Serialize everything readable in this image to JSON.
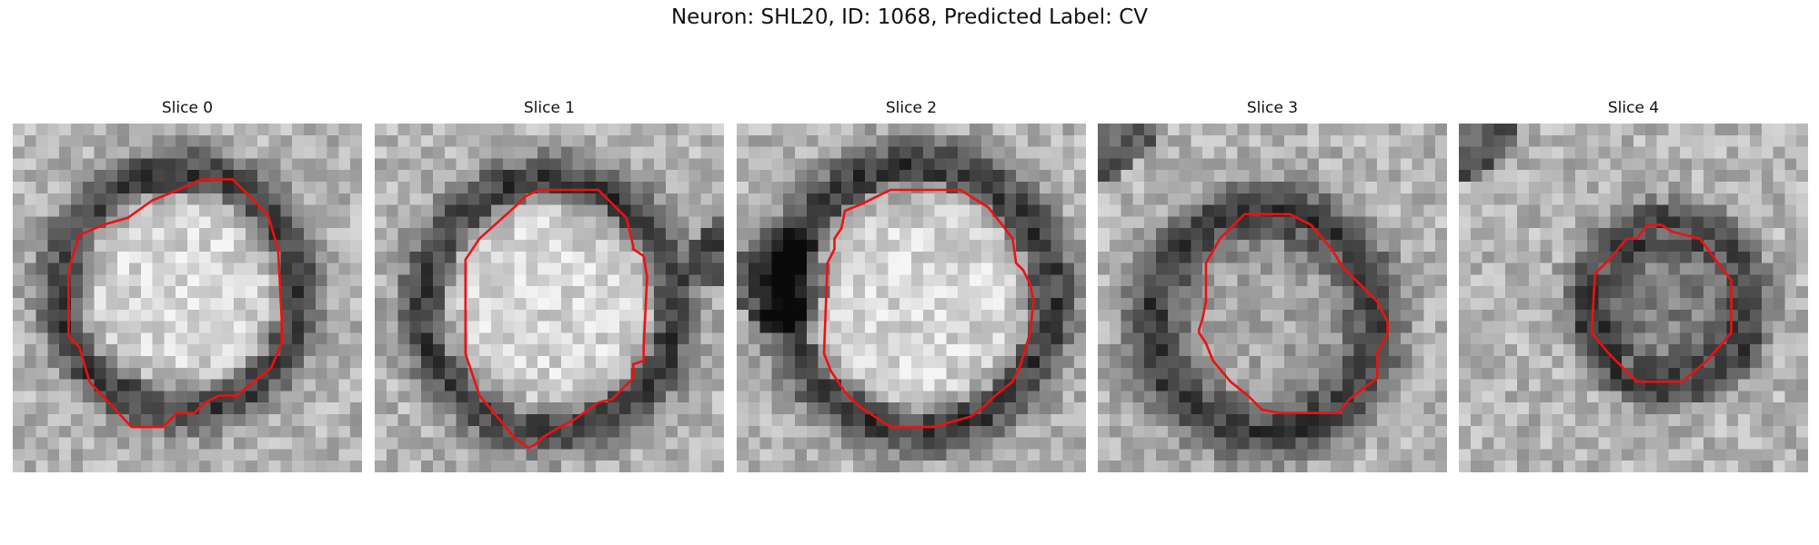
{
  "figure": {
    "title": "Neuron: SHL20, ID: 1068, Predicted Label: CV"
  },
  "slices": [
    {
      "title": "Slice 0",
      "contour_color": "#ee1111",
      "image": {
        "ring_center": [
          0.48,
          0.48
        ],
        "ring_radius": 0.34,
        "ring_width": 0.12,
        "inner": "bright",
        "corner_dark": "none"
      },
      "contour": [
        [
          0.54,
          0.16
        ],
        [
          0.63,
          0.16
        ],
        [
          0.73,
          0.26
        ],
        [
          0.76,
          0.36
        ],
        [
          0.77,
          0.56
        ],
        [
          0.77,
          0.63
        ],
        [
          0.74,
          0.7
        ],
        [
          0.64,
          0.78
        ],
        [
          0.59,
          0.78
        ],
        [
          0.55,
          0.8
        ],
        [
          0.52,
          0.83
        ],
        [
          0.47,
          0.83
        ],
        [
          0.43,
          0.87
        ],
        [
          0.34,
          0.87
        ],
        [
          0.22,
          0.74
        ],
        [
          0.19,
          0.64
        ],
        [
          0.16,
          0.61
        ],
        [
          0.16,
          0.42
        ],
        [
          0.19,
          0.32
        ],
        [
          0.26,
          0.29
        ],
        [
          0.33,
          0.27
        ],
        [
          0.4,
          0.22
        ],
        [
          0.45,
          0.2
        ]
      ]
    },
    {
      "title": "Slice 1",
      "contour_color": "#ee1111",
      "image": {
        "ring_center": [
          0.5,
          0.52
        ],
        "ring_radius": 0.36,
        "ring_width": 0.12,
        "inner": "bright",
        "corner_dark": "top-right"
      },
      "contour": [
        [
          0.47,
          0.19
        ],
        [
          0.64,
          0.19
        ],
        [
          0.72,
          0.27
        ],
        [
          0.74,
          0.35
        ],
        [
          0.74,
          0.36
        ],
        [
          0.77,
          0.38
        ],
        [
          0.78,
          0.44
        ],
        [
          0.77,
          0.64
        ],
        [
          0.77,
          0.68
        ],
        [
          0.74,
          0.69
        ],
        [
          0.74,
          0.73
        ],
        [
          0.68,
          0.79
        ],
        [
          0.64,
          0.8
        ],
        [
          0.57,
          0.85
        ],
        [
          0.53,
          0.87
        ],
        [
          0.48,
          0.9
        ],
        [
          0.46,
          0.92
        ],
        [
          0.44,
          0.93
        ],
        [
          0.4,
          0.9
        ],
        [
          0.3,
          0.78
        ],
        [
          0.28,
          0.72
        ],
        [
          0.26,
          0.66
        ],
        [
          0.26,
          0.39
        ],
        [
          0.3,
          0.33
        ],
        [
          0.4,
          0.24
        ],
        [
          0.43,
          0.21
        ]
      ]
    },
    {
      "title": "Slice 2",
      "contour_color": "#ee1111",
      "image": {
        "ring_center": [
          0.52,
          0.5
        ],
        "ring_radius": 0.38,
        "ring_width": 0.13,
        "inner": "bright",
        "corner_dark": "left"
      },
      "contour": [
        [
          0.44,
          0.19
        ],
        [
          0.64,
          0.19
        ],
        [
          0.72,
          0.24
        ],
        [
          0.76,
          0.29
        ],
        [
          0.79,
          0.33
        ],
        [
          0.8,
          0.4
        ],
        [
          0.82,
          0.42
        ],
        [
          0.84,
          0.46
        ],
        [
          0.85,
          0.51
        ],
        [
          0.84,
          0.6
        ],
        [
          0.81,
          0.7
        ],
        [
          0.79,
          0.74
        ],
        [
          0.74,
          0.78
        ],
        [
          0.71,
          0.81
        ],
        [
          0.67,
          0.84
        ],
        [
          0.56,
          0.87
        ],
        [
          0.44,
          0.87
        ],
        [
          0.35,
          0.81
        ],
        [
          0.31,
          0.77
        ],
        [
          0.29,
          0.74
        ],
        [
          0.27,
          0.71
        ],
        [
          0.25,
          0.66
        ],
        [
          0.26,
          0.4
        ],
        [
          0.28,
          0.36
        ],
        [
          0.28,
          0.33
        ],
        [
          0.3,
          0.3
        ],
        [
          0.31,
          0.25
        ],
        [
          0.36,
          0.23
        ],
        [
          0.4,
          0.21
        ]
      ]
    },
    {
      "title": "Slice 3",
      "contour_color": "#ee1111",
      "image": {
        "ring_center": [
          0.48,
          0.57
        ],
        "ring_radius": 0.32,
        "ring_width": 0.14,
        "inner": "mid",
        "corner_dark": "top-left"
      },
      "contour": [
        [
          0.42,
          0.26
        ],
        [
          0.55,
          0.26
        ],
        [
          0.61,
          0.29
        ],
        [
          0.67,
          0.36
        ],
        [
          0.7,
          0.41
        ],
        [
          0.8,
          0.51
        ],
        [
          0.83,
          0.57
        ],
        [
          0.83,
          0.6
        ],
        [
          0.8,
          0.66
        ],
        [
          0.8,
          0.73
        ],
        [
          0.72,
          0.79
        ],
        [
          0.69,
          0.83
        ],
        [
          0.52,
          0.83
        ],
        [
          0.47,
          0.82
        ],
        [
          0.43,
          0.78
        ],
        [
          0.38,
          0.74
        ],
        [
          0.33,
          0.68
        ],
        [
          0.31,
          0.63
        ],
        [
          0.29,
          0.6
        ],
        [
          0.29,
          0.59
        ],
        [
          0.3,
          0.56
        ],
        [
          0.31,
          0.51
        ],
        [
          0.31,
          0.4
        ],
        [
          0.35,
          0.33
        ],
        [
          0.38,
          0.3
        ]
      ]
    },
    {
      "title": "Slice 4",
      "contour_color": "#ee1111",
      "image": {
        "ring_center": [
          0.6,
          0.52
        ],
        "ring_radius": 0.24,
        "ring_width": 0.1,
        "inner": "dark",
        "corner_dark": "top-left"
      },
      "contour": [
        [
          0.54,
          0.29
        ],
        [
          0.58,
          0.29
        ],
        [
          0.61,
          0.31
        ],
        [
          0.69,
          0.33
        ],
        [
          0.78,
          0.45
        ],
        [
          0.78,
          0.6
        ],
        [
          0.71,
          0.68
        ],
        [
          0.64,
          0.74
        ],
        [
          0.6,
          0.74
        ],
        [
          0.51,
          0.74
        ],
        [
          0.43,
          0.66
        ],
        [
          0.38,
          0.6
        ],
        [
          0.39,
          0.43
        ],
        [
          0.44,
          0.38
        ],
        [
          0.48,
          0.33
        ],
        [
          0.51,
          0.33
        ]
      ]
    }
  ]
}
